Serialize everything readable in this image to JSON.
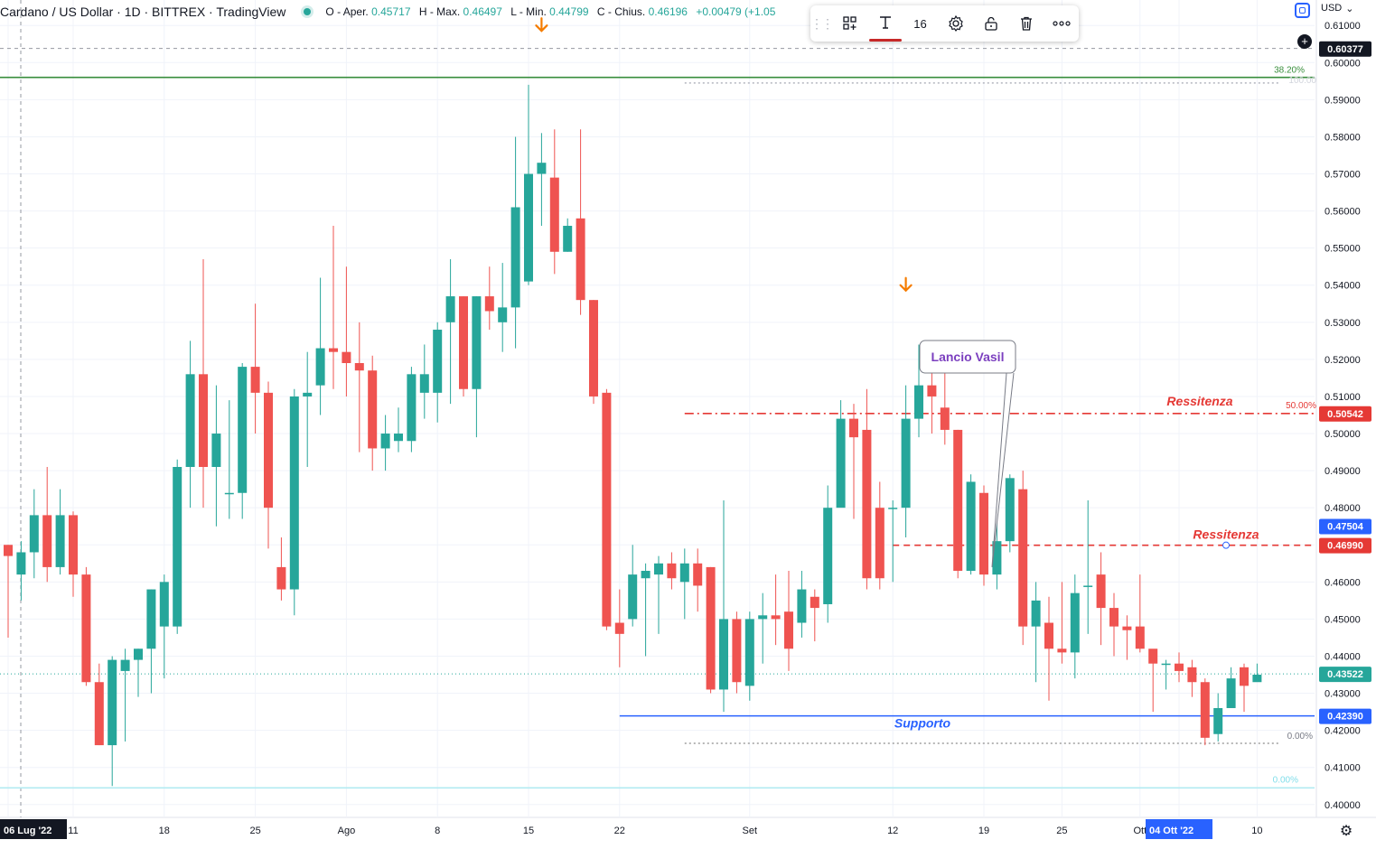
{
  "header": {
    "title": "Cardano / US Dollar · 1D · BITTREX · TradingView",
    "ohlc": [
      {
        "label": "O - Aper.",
        "value": "0.45717"
      },
      {
        "label": "H - Max.",
        "value": "0.46497"
      },
      {
        "label": "L - Min.",
        "value": "0.44799"
      },
      {
        "label": "C - Chius.",
        "value": "0.46196"
      },
      {
        "label": "",
        "value": "+0.00479 (+1.05"
      }
    ]
  },
  "currency": "USD",
  "toolbar": {
    "font_size": "16",
    "buttons": [
      "grip-icon",
      "template-icon",
      "text-color-icon",
      "font-size",
      "settings-icon",
      "lock-icon",
      "delete-icon",
      "more-icon"
    ]
  },
  "colors": {
    "up": "#26a69a",
    "down": "#ef5350",
    "support": "#2962ff",
    "resistance": "#e53935",
    "fib_green": "#388e3c",
    "annotation_text": "#7b3fbf",
    "arrow": "#f57c00"
  },
  "chart_data": {
    "type": "candlestick",
    "title": "Cardano / US Dollar · 1D · BITTREX",
    "ylim": [
      0.398,
      0.612
    ],
    "y_ticks": [
      "0.40000",
      "0.41000",
      "0.42000",
      "0.43000",
      "0.44000",
      "0.45000",
      "0.46000",
      "0.47000",
      "0.48000",
      "0.49000",
      "0.50000",
      "0.51000",
      "0.52000",
      "0.53000",
      "0.54000",
      "0.55000",
      "0.56000",
      "0.57000",
      "0.58000",
      "0.59000",
      "0.60000",
      "0.61000"
    ],
    "x_ticks": [
      {
        "label": "06 Lug '22",
        "day": 0,
        "highlight": true
      },
      {
        "label": "11",
        "day": 5
      },
      {
        "label": "18",
        "day": 12
      },
      {
        "label": "25",
        "day": 19
      },
      {
        "label": "Ago",
        "day": 26
      },
      {
        "label": "8",
        "day": 33
      },
      {
        "label": "15",
        "day": 40
      },
      {
        "label": "22",
        "day": 47
      },
      {
        "label": "Set",
        "day": 57
      },
      {
        "label": "12",
        "day": 68
      },
      {
        "label": "19",
        "day": 75
      },
      {
        "label": "25",
        "day": 81
      },
      {
        "label": "Ott",
        "day": 87
      },
      {
        "label": "04 Ott '22",
        "day": 90,
        "highlight": true
      },
      {
        "label": "10",
        "day": 96
      }
    ],
    "candles": [
      [
        0.47,
        0.467,
        0.47,
        0.445
      ],
      [
        0.462,
        0.468,
        0.471,
        0.455
      ],
      [
        0.468,
        0.478,
        0.485,
        0.461
      ],
      [
        0.478,
        0.464,
        0.491,
        0.46
      ],
      [
        0.464,
        0.478,
        0.485,
        0.462
      ],
      [
        0.478,
        0.462,
        0.479,
        0.456
      ],
      [
        0.462,
        0.433,
        0.464,
        0.432
      ],
      [
        0.433,
        0.416,
        0.438,
        0.416
      ],
      [
        0.416,
        0.439,
        0.44,
        0.405
      ],
      [
        0.436,
        0.439,
        0.442,
        0.417
      ],
      [
        0.439,
        0.442,
        0.442,
        0.429
      ],
      [
        0.442,
        0.458,
        0.458,
        0.43
      ],
      [
        0.448,
        0.46,
        0.462,
        0.434
      ],
      [
        0.448,
        0.491,
        0.493,
        0.446
      ],
      [
        0.491,
        0.516,
        0.525,
        0.48
      ],
      [
        0.516,
        0.491,
        0.547,
        0.48
      ],
      [
        0.491,
        0.5,
        0.513,
        0.475
      ],
      [
        0.484,
        0.484,
        0.509,
        0.477
      ],
      [
        0.484,
        0.518,
        0.519,
        0.477
      ],
      [
        0.518,
        0.511,
        0.535,
        0.5
      ],
      [
        0.511,
        0.48,
        0.514,
        0.469
      ],
      [
        0.464,
        0.458,
        0.472,
        0.455
      ],
      [
        0.458,
        0.51,
        0.512,
        0.451
      ],
      [
        0.51,
        0.511,
        0.522,
        0.491
      ],
      [
        0.513,
        0.523,
        0.542,
        0.505
      ],
      [
        0.523,
        0.522,
        0.556,
        0.512
      ],
      [
        0.522,
        0.519,
        0.545,
        0.51
      ],
      [
        0.519,
        0.517,
        0.53,
        0.495
      ],
      [
        0.517,
        0.496,
        0.521,
        0.49
      ],
      [
        0.496,
        0.5,
        0.505,
        0.49
      ],
      [
        0.498,
        0.5,
        0.507,
        0.495
      ],
      [
        0.498,
        0.516,
        0.518,
        0.495
      ],
      [
        0.511,
        0.516,
        0.524,
        0.504
      ],
      [
        0.511,
        0.528,
        0.53,
        0.503
      ],
      [
        0.53,
        0.537,
        0.547,
        0.508
      ],
      [
        0.537,
        0.512,
        0.537,
        0.51
      ],
      [
        0.512,
        0.537,
        0.537,
        0.499
      ],
      [
        0.537,
        0.533,
        0.545,
        0.528
      ],
      [
        0.53,
        0.534,
        0.546,
        0.522
      ],
      [
        0.534,
        0.561,
        0.58,
        0.523
      ],
      [
        0.541,
        0.57,
        0.594,
        0.54
      ],
      [
        0.57,
        0.573,
        0.581,
        0.556
      ],
      [
        0.569,
        0.549,
        0.582,
        0.543
      ],
      [
        0.549,
        0.556,
        0.558,
        0.549
      ],
      [
        0.558,
        0.536,
        0.582,
        0.532
      ],
      [
        0.536,
        0.51,
        0.536,
        0.508
      ],
      [
        0.511,
        0.448,
        0.512,
        0.447
      ],
      [
        0.449,
        0.446,
        0.458,
        0.437
      ],
      [
        0.45,
        0.462,
        0.47,
        0.448
      ],
      [
        0.461,
        0.463,
        0.465,
        0.44
      ],
      [
        0.462,
        0.465,
        0.467,
        0.446
      ],
      [
        0.465,
        0.461,
        0.468,
        0.458
      ],
      [
        0.46,
        0.465,
        0.469,
        0.45
      ],
      [
        0.465,
        0.459,
        0.469,
        0.452
      ],
      [
        0.464,
        0.431,
        0.464,
        0.43
      ],
      [
        0.431,
        0.45,
        0.482,
        0.425
      ],
      [
        0.45,
        0.433,
        0.452,
        0.43
      ],
      [
        0.432,
        0.45,
        0.452,
        0.428
      ],
      [
        0.45,
        0.451,
        0.457,
        0.438
      ],
      [
        0.451,
        0.45,
        0.462,
        0.443
      ],
      [
        0.452,
        0.442,
        0.463,
        0.436
      ],
      [
        0.449,
        0.458,
        0.463,
        0.445
      ],
      [
        0.456,
        0.453,
        0.458,
        0.444
      ],
      [
        0.454,
        0.48,
        0.486,
        0.449
      ],
      [
        0.48,
        0.504,
        0.509,
        0.482
      ],
      [
        0.504,
        0.499,
        0.508,
        0.477
      ],
      [
        0.501,
        0.461,
        0.512,
        0.458
      ],
      [
        0.48,
        0.461,
        0.487,
        0.458
      ],
      [
        0.48,
        0.48,
        0.482,
        0.46
      ],
      [
        0.48,
        0.504,
        0.513,
        0.472
      ],
      [
        0.504,
        0.513,
        0.524,
        0.499
      ],
      [
        0.513,
        0.51,
        0.519,
        0.5
      ],
      [
        0.507,
        0.501,
        0.52,
        0.497
      ],
      [
        0.501,
        0.463,
        0.501,
        0.461
      ],
      [
        0.463,
        0.487,
        0.489,
        0.462
      ],
      [
        0.484,
        0.462,
        0.486,
        0.459
      ],
      [
        0.462,
        0.471,
        0.479,
        0.458
      ],
      [
        0.471,
        0.488,
        0.489,
        0.468
      ],
      [
        0.485,
        0.448,
        0.49,
        0.443
      ],
      [
        0.448,
        0.455,
        0.46,
        0.433
      ],
      [
        0.449,
        0.442,
        0.456,
        0.428
      ],
      [
        0.442,
        0.441,
        0.46,
        0.438
      ],
      [
        0.441,
        0.457,
        0.462,
        0.434
      ],
      [
        0.459,
        0.459,
        0.482,
        0.446
      ],
      [
        0.462,
        0.453,
        0.468,
        0.443
      ],
      [
        0.453,
        0.448,
        0.457,
        0.44
      ],
      [
        0.448,
        0.447,
        0.451,
        0.439
      ],
      [
        0.448,
        0.442,
        0.462,
        0.441
      ],
      [
        0.442,
        0.438,
        0.441,
        0.425
      ],
      [
        0.438,
        0.438,
        0.439,
        0.431
      ],
      [
        0.438,
        0.436,
        0.441,
        0.433
      ],
      [
        0.437,
        0.433,
        0.439,
        0.429
      ],
      [
        0.433,
        0.418,
        0.434,
        0.416
      ],
      [
        0.419,
        0.426,
        0.43,
        0.417
      ],
      [
        0.426,
        0.434,
        0.437,
        0.429
      ],
      [
        0.437,
        0.432,
        0.438,
        0.425
      ],
      [
        0.433,
        0.435,
        0.438,
        0.434
      ]
    ],
    "lines": [
      {
        "name": "fib-38.20",
        "label": "38.20%",
        "price": 0.596,
        "style": "solid",
        "color": "#388e3c",
        "from_day": null
      },
      {
        "name": "fib-100-top",
        "label": "100.00",
        "price": 0.5945,
        "style": "dotted",
        "color": "#b2b5be",
        "from_day": 52
      },
      {
        "name": "resistenza-50",
        "label": "Ressitenza",
        "price": 0.50542,
        "style": "dashdot",
        "color": "#e53935",
        "from_day": 52,
        "percent": "50.00%"
      },
      {
        "name": "resistenza-2",
        "label": "Ressitenza",
        "price": 0.4699,
        "style": "dashed",
        "color": "#e53935",
        "from_day": 68
      },
      {
        "name": "supporto",
        "label": "Supporto",
        "price": 0.4239,
        "style": "solid",
        "color": "#2962ff",
        "from_day": 47
      },
      {
        "name": "fib-0-low",
        "label": "0.00%",
        "price": 0.4165,
        "style": "dotted",
        "color": "#9e9e9e",
        "from_day": 52
      },
      {
        "name": "fib-0-bottom",
        "label": "0.00%",
        "price": 0.4045,
        "style": "solid",
        "color": "#b2ebf2",
        "from_day": null
      }
    ],
    "price_labels": [
      {
        "value": "0.60377",
        "bg": "#131722"
      },
      {
        "value": "0.50542",
        "bg": "#e53935"
      },
      {
        "value": "0.47504",
        "bg": "#2962ff"
      },
      {
        "value": "0.46990",
        "bg": "#e53935"
      },
      {
        "value": "0.43522",
        "bg": "#26a69a"
      },
      {
        "value": "0.42390",
        "bg": "#2962ff"
      }
    ],
    "annotations": [
      {
        "text": "Lancio Vasil",
        "anchor_day": 75,
        "anchor_price": 0.464
      },
      {
        "type": "arrow-down",
        "day": 41,
        "price": 0.61
      },
      {
        "type": "arrow-down",
        "day": 69,
        "price": 0.54
      }
    ],
    "crosshair_price": 0.6038
  }
}
